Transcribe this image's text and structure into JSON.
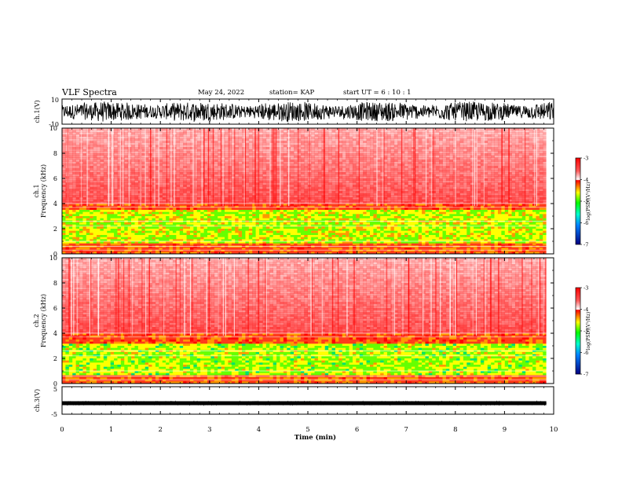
{
  "header": {
    "title": "VLF Spectra",
    "date": "May 24, 2022",
    "station": "station= KAP",
    "start": "start  UT  =   6  : 10 : 1"
  },
  "colors": {
    "frame": "#000000",
    "spectrogram_high": "#ff0000",
    "spectrogram_mid": "#ffff00",
    "spectrogram_low": "#00ff00",
    "background": "#ffffff"
  },
  "chart_data": [
    {
      "type": "line",
      "panel": "ch1_waveform",
      "ylabel": "ch.1(V)",
      "ylim": [
        -10,
        10
      ],
      "ytick_labels": [
        "-10",
        "10"
      ],
      "xlim": [
        0,
        10
      ],
      "description_values": "dense black noise trace, amplitude roughly between -7 and 7 V"
    },
    {
      "type": "heatmap",
      "panel": "ch1_spectrogram",
      "ylabel_top": "ch.1",
      "ylabel": "Frequency  (kHz)",
      "ylim": [
        0,
        10
      ],
      "ytick_labels": [
        "0",
        "2",
        "4",
        "6",
        "8",
        "10"
      ],
      "xlim": [
        0,
        9.85
      ],
      "bands": [
        {
          "f_from": 0.0,
          "f_to": 0.8,
          "level": -4.0
        },
        {
          "f_from": 0.8,
          "f_to": 3.5,
          "level": -4.9
        },
        {
          "f_from": 3.5,
          "f_to": 4.2,
          "level": -3.9
        },
        {
          "f_from": 4.2,
          "f_to": 10.0,
          "level": -3.3
        }
      ],
      "colorbar": {
        "label": "log(PSD)(V²/Hz)",
        "range": [
          -7,
          -3
        ],
        "tick_labels": [
          "-3",
          "-4",
          "-5",
          "-6",
          "-7"
        ]
      }
    },
    {
      "type": "heatmap",
      "panel": "ch2_spectrogram",
      "ylabel_top": "ch.2",
      "ylabel": "Frequency  (kHz)",
      "ylim": [
        0,
        10
      ],
      "ytick_labels": [
        "0",
        "2",
        "4",
        "6",
        "8",
        "10"
      ],
      "xlim": [
        0,
        9.85
      ],
      "bands": [
        {
          "f_from": 0.0,
          "f_to": 0.7,
          "level": -4.0
        },
        {
          "f_from": 0.7,
          "f_to": 3.2,
          "level": -5.0
        },
        {
          "f_from": 3.2,
          "f_to": 4.0,
          "level": -3.9
        },
        {
          "f_from": 4.0,
          "f_to": 10.0,
          "level": -3.3
        }
      ],
      "colorbar": {
        "label": "log(PSD)(V²/Hz)",
        "range": [
          -7,
          -3
        ],
        "tick_labels": [
          "-3",
          "-4",
          "-5",
          "-6",
          "-7"
        ]
      }
    },
    {
      "type": "line",
      "panel": "ch3_waveform",
      "ylabel": "ch.3(V)",
      "ylim": [
        -5,
        5
      ],
      "ytick_labels": [
        "-5",
        "5"
      ],
      "xlim": [
        0,
        10
      ],
      "xlabel": "Time  (min)",
      "xtick_labels": [
        "0",
        "1",
        "2",
        "3",
        "4",
        "5",
        "6",
        "7",
        "8",
        "9",
        "10"
      ],
      "description_values": "narrow black band centered near -1 V, amplitude about ±0.6 V"
    }
  ]
}
